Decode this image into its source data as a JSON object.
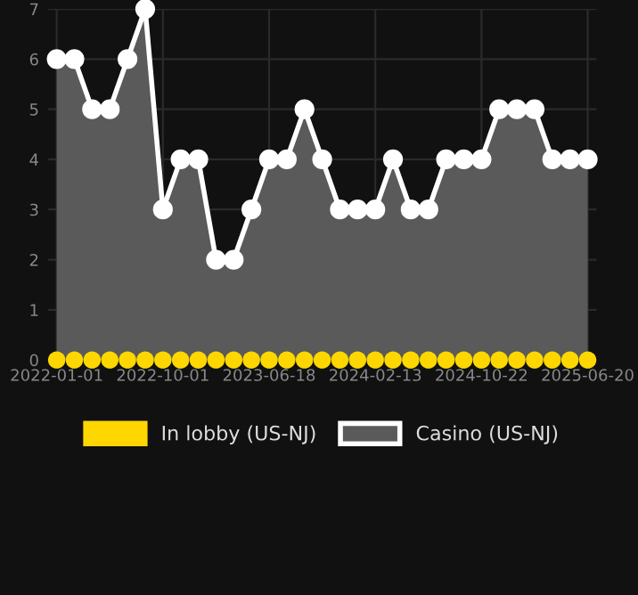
{
  "chart_data": {
    "type": "area",
    "categories": [
      "2022-01-01",
      null,
      null,
      null,
      null,
      null,
      "2022-10-01",
      null,
      null,
      null,
      null,
      null,
      "2023-06-18",
      null,
      null,
      null,
      null,
      null,
      "2024-02-13",
      null,
      null,
      null,
      null,
      null,
      "2024-10-22",
      null,
      null,
      null,
      null,
      null,
      "2025-06-20"
    ],
    "series": [
      {
        "name": "In lobby (US-NJ)",
        "type": "scatter",
        "color": "#ffd700",
        "values": [
          0,
          0,
          0,
          0,
          0,
          0,
          0,
          0,
          0,
          0,
          0,
          0,
          0,
          0,
          0,
          0,
          0,
          0,
          0,
          0,
          0,
          0,
          0,
          0,
          0,
          0,
          0,
          0,
          0,
          0,
          0
        ]
      },
      {
        "name": "Casino (US-NJ)",
        "color": "#ffffff",
        "values": [
          6,
          6,
          5,
          5,
          6,
          7,
          3,
          4,
          4,
          2,
          2,
          3,
          4,
          4,
          5,
          4,
          3,
          3,
          3,
          4,
          3,
          3,
          4,
          4,
          4,
          5,
          5,
          5,
          4,
          4,
          4
        ]
      }
    ],
    "ylim": [
      0,
      7
    ],
    "yticks": [
      0,
      1,
      2,
      3,
      4,
      5,
      6,
      7
    ],
    "grid": true,
    "legend": "bottom",
    "marker": "circle",
    "line_style": "solid"
  }
}
